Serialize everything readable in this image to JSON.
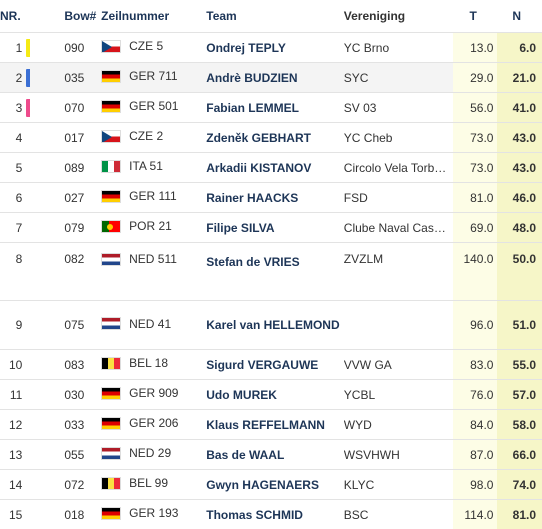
{
  "headers": {
    "nr": "NR.",
    "bow": "Bow#",
    "sail": "Zeilnummer",
    "team": "Team",
    "club": "Vereniging",
    "t": "T",
    "n": "N"
  },
  "rows": [
    {
      "nr": "1",
      "bow": "090",
      "country": "CZE",
      "sail": "CZE 5",
      "team": "Ondrej TEPLY",
      "club": "YC Brno",
      "t": "13.0",
      "n": "6.0",
      "marker": "#f5ea14"
    },
    {
      "nr": "2",
      "bow": "035",
      "country": "GER",
      "sail": "GER 711",
      "team": "Andrè BUDZIEN",
      "club": "SYC",
      "t": "29.0",
      "n": "21.0",
      "marker": "#3b6fd4"
    },
    {
      "nr": "3",
      "bow": "070",
      "country": "GER",
      "sail": "GER 501",
      "team": "Fabian LEMMEL",
      "club": "SV 03",
      "t": "56.0",
      "n": "41.0",
      "marker": "#ee4b8c"
    },
    {
      "nr": "4",
      "bow": "017",
      "country": "CZE",
      "sail": "CZE 2",
      "team": "Zdeněk GEBHART",
      "club": "YC Cheb",
      "t": "73.0",
      "n": "43.0",
      "marker": ""
    },
    {
      "nr": "5",
      "bow": "089",
      "country": "ITA",
      "sail": "ITA 51",
      "team": "Arkadii KISTANOV",
      "club": "Circolo Vela Torb…",
      "t": "73.0",
      "n": "43.0",
      "marker": ""
    },
    {
      "nr": "6",
      "bow": "027",
      "country": "GER",
      "sail": "GER 111",
      "team": "Rainer HAACKS",
      "club": "FSD",
      "t": "81.0",
      "n": "46.0",
      "marker": ""
    },
    {
      "nr": "7",
      "bow": "079",
      "country": "POR",
      "sail": "POR 21",
      "team": "Filipe SILVA",
      "club": "Clube Naval Cas…",
      "t": "69.0",
      "n": "48.0",
      "marker": ""
    },
    {
      "nr": "8",
      "bow": "082",
      "country": "NED",
      "sail": "NED 511",
      "team": "Stefan de VRIES",
      "club": "ZVZLM",
      "t": "140.0",
      "n": "50.0",
      "marker": ""
    },
    {
      "nr": "9",
      "bow": "075",
      "country": "NED",
      "sail": "NED 41",
      "team": "Karel van HELLEMOND",
      "club": "",
      "t": "96.0",
      "n": "51.0",
      "marker": ""
    },
    {
      "nr": "10",
      "bow": "083",
      "country": "BEL",
      "sail": "BEL 18",
      "team": "Sigurd VERGAUWE",
      "club": "VVW GA",
      "t": "83.0",
      "n": "55.0",
      "marker": ""
    },
    {
      "nr": "11",
      "bow": "030",
      "country": "GER",
      "sail": "GER 909",
      "team": "Udo MUREK",
      "club": "YCBL",
      "t": "76.0",
      "n": "57.0",
      "marker": ""
    },
    {
      "nr": "12",
      "bow": "033",
      "country": "GER",
      "sail": "GER 206",
      "team": "Klaus REFFELMANN",
      "club": "WYD",
      "t": "84.0",
      "n": "58.0",
      "marker": ""
    },
    {
      "nr": "13",
      "bow": "055",
      "country": "NED",
      "sail": "NED 29",
      "team": "Bas de WAAL",
      "club": "WSVHWH",
      "t": "87.0",
      "n": "66.0",
      "marker": ""
    },
    {
      "nr": "14",
      "bow": "072",
      "country": "BEL",
      "sail": "BEL 99",
      "team": "Gwyn HAGENAERS",
      "club": "KLYC",
      "t": "98.0",
      "n": "74.0",
      "marker": ""
    },
    {
      "nr": "15",
      "bow": "018",
      "country": "GER",
      "sail": "GER 193",
      "team": "Thomas SCHMID",
      "club": "BSC",
      "t": "114.0",
      "n": "81.0",
      "marker": ""
    }
  ]
}
